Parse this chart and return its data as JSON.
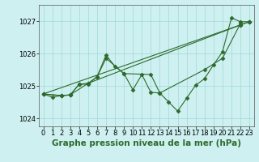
{
  "xlabel": "Graphe pression niveau de la mer (hPa)",
  "x": [
    0,
    1,
    2,
    3,
    4,
    5,
    6,
    7,
    8,
    9,
    10,
    11,
    12,
    13,
    14,
    15,
    16,
    17,
    18,
    19,
    20,
    21,
    22,
    23
  ],
  "lines": [
    [
      1024.75,
      1024.65,
      1024.7,
      1024.72,
      1025.05,
      1025.05,
      1025.28,
      1025.95,
      1025.6,
      1025.38,
      1024.88,
      1025.35,
      1024.8,
      1024.78,
      1024.5,
      1024.22,
      1024.62,
      1025.02,
      1025.22,
      1025.65,
      1026.05,
      1027.1,
      1026.98,
      1026.98
    ],
    [
      1024.75,
      null,
      1024.7,
      1024.72,
      1025.05,
      1025.08,
      1025.28,
      1025.85,
      null,
      1025.38,
      null,
      null,
      1025.35,
      1024.78,
      null,
      null,
      null,
      null,
      1025.5,
      null,
      1025.85,
      null,
      1026.92,
      null
    ],
    [
      1024.75,
      null,
      1024.7,
      1024.72,
      null,
      1025.08,
      null,
      null,
      null,
      null,
      null,
      null,
      null,
      null,
      null,
      null,
      null,
      null,
      null,
      null,
      null,
      null,
      1026.88,
      1026.98
    ],
    [
      1024.75,
      null,
      null,
      null,
      null,
      null,
      null,
      null,
      null,
      null,
      null,
      null,
      null,
      null,
      null,
      null,
      null,
      null,
      null,
      null,
      null,
      null,
      1026.88,
      1026.98
    ]
  ],
  "line_color": "#2d6a2d",
  "marker": "D",
  "markersize": 2.5,
  "linewidth": 0.8,
  "ylim": [
    1023.75,
    1027.5
  ],
  "yticks": [
    1024,
    1025,
    1026,
    1027
  ],
  "xlim": [
    -0.5,
    23.5
  ],
  "bg_color": "#cef0f0",
  "grid_color": "#a0d8d8",
  "tick_label_fontsize": 6,
  "xlabel_fontsize": 7.5
}
